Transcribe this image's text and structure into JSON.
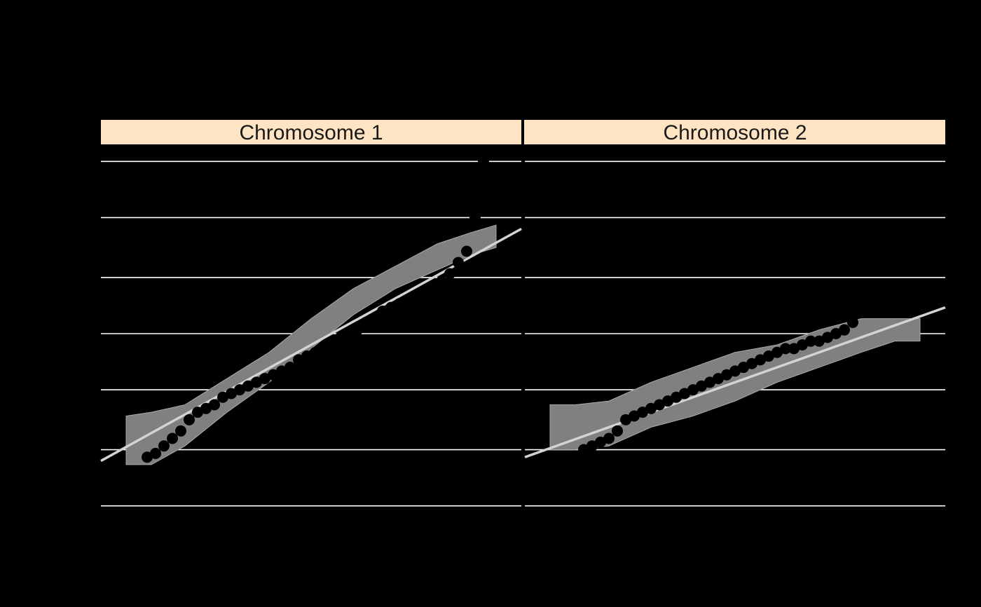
{
  "colors": {
    "background": "#000000",
    "strip_fill": "#ffe4c4",
    "strip_border": "#000000",
    "strip_text": "#1a1a1a",
    "gridline": "#ffffff",
    "band_fill": "#808080",
    "band_edge": "#a9a9a9",
    "reference_line": "#d3d3d3",
    "points": "#000000"
  },
  "chart_data": {
    "type": "scatter",
    "title": "",
    "xlabel": "",
    "ylabel": "",
    "grid": "horizontal major gridlines only",
    "legend": "none",
    "panels": [
      {
        "strip_label": "Chromosome 1",
        "xlim": [
          0,
          1
        ],
        "ylim": [
          0,
          1
        ],
        "gridlines_y": [
          0.04,
          0.19,
          0.35,
          0.5,
          0.65,
          0.81,
          0.96
        ],
        "reference_line": {
          "x": [
            0,
            1
          ],
          "y": [
            0.16,
            0.78
          ]
        },
        "band": {
          "x": [
            0.06,
            0.12,
            0.2,
            0.3,
            0.4,
            0.5,
            0.6,
            0.7,
            0.8,
            0.88,
            0.94
          ],
          "lower": [
            0.15,
            0.15,
            0.2,
            0.29,
            0.37,
            0.46,
            0.55,
            0.62,
            0.67,
            0.71,
            0.73
          ],
          "upper": [
            0.28,
            0.29,
            0.31,
            0.38,
            0.45,
            0.54,
            0.62,
            0.68,
            0.74,
            0.77,
            0.79
          ]
        },
        "points": {
          "x": [
            0.11,
            0.13,
            0.15,
            0.17,
            0.19,
            0.21,
            0.23,
            0.25,
            0.27,
            0.29,
            0.31,
            0.33,
            0.35,
            0.37,
            0.39,
            0.41,
            0.43,
            0.45,
            0.47,
            0.49,
            0.51,
            0.53,
            0.55,
            0.57,
            0.59,
            0.61,
            0.63,
            0.65,
            0.67,
            0.69,
            0.71,
            0.73,
            0.75,
            0.77,
            0.79,
            0.81,
            0.83,
            0.85,
            0.87,
            0.89,
            0.91
          ],
          "y": [
            0.17,
            0.18,
            0.2,
            0.22,
            0.24,
            0.27,
            0.29,
            0.3,
            0.31,
            0.33,
            0.34,
            0.35,
            0.36,
            0.37,
            0.38,
            0.39,
            0.4,
            0.41,
            0.43,
            0.44,
            0.45,
            0.46,
            0.47,
            0.49,
            0.5,
            0.51,
            0.53,
            0.54,
            0.56,
            0.57,
            0.58,
            0.59,
            0.6,
            0.61,
            0.62,
            0.64,
            0.66,
            0.69,
            0.72,
            0.81,
            0.96
          ]
        }
      },
      {
        "strip_label": "Chromosome 2",
        "xlim": [
          0,
          1
        ],
        "ylim": [
          0,
          1
        ],
        "gridlines_y": [
          0.04,
          0.19,
          0.35,
          0.5,
          0.65,
          0.81,
          0.96
        ],
        "reference_line": {
          "x": [
            0,
            1
          ],
          "y": [
            0.17,
            0.57
          ]
        },
        "band": {
          "x": [
            0.06,
            0.12,
            0.2,
            0.3,
            0.4,
            0.5,
            0.6,
            0.7,
            0.8,
            0.88,
            0.94
          ],
          "lower": [
            0.19,
            0.19,
            0.2,
            0.25,
            0.28,
            0.32,
            0.37,
            0.41,
            0.45,
            0.48,
            0.48
          ],
          "upper": [
            0.31,
            0.31,
            0.32,
            0.37,
            0.41,
            0.45,
            0.47,
            0.51,
            0.54,
            0.54,
            0.54
          ]
        },
        "points": {
          "x": [
            0.14,
            0.16,
            0.18,
            0.2,
            0.22,
            0.24,
            0.26,
            0.28,
            0.3,
            0.32,
            0.34,
            0.36,
            0.38,
            0.4,
            0.42,
            0.44,
            0.46,
            0.48,
            0.5,
            0.52,
            0.54,
            0.56,
            0.58,
            0.6,
            0.62,
            0.64,
            0.66,
            0.68,
            0.7,
            0.72,
            0.74,
            0.76,
            0.78
          ],
          "y": [
            0.19,
            0.2,
            0.21,
            0.22,
            0.24,
            0.27,
            0.28,
            0.29,
            0.3,
            0.31,
            0.32,
            0.33,
            0.34,
            0.35,
            0.36,
            0.37,
            0.38,
            0.39,
            0.4,
            0.41,
            0.42,
            0.43,
            0.44,
            0.45,
            0.46,
            0.46,
            0.47,
            0.48,
            0.48,
            0.49,
            0.5,
            0.51,
            0.53
          ]
        }
      }
    ]
  }
}
